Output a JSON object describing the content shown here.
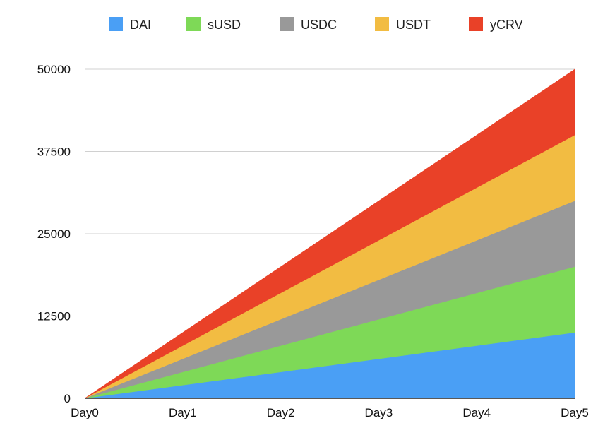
{
  "chart_data": {
    "type": "area",
    "stacked": true,
    "categories": [
      "Day0",
      "Day1",
      "Day2",
      "Day3",
      "Day4",
      "Day5"
    ],
    "series": [
      {
        "name": "DAI",
        "color": "#4a9ff5",
        "values": [
          0,
          2000,
          4000,
          6000,
          8000,
          10000
        ]
      },
      {
        "name": "sUSD",
        "color": "#7ed957",
        "values": [
          0,
          2000,
          4000,
          6000,
          8000,
          10000
        ]
      },
      {
        "name": "USDC",
        "color": "#999999",
        "values": [
          0,
          2000,
          4000,
          6000,
          8000,
          10000
        ]
      },
      {
        "name": "USDT",
        "color": "#f2bc42",
        "values": [
          0,
          2000,
          4000,
          6000,
          8000,
          10000
        ]
      },
      {
        "name": "yCRV",
        "color": "#e94128",
        "values": [
          0,
          2000,
          4000,
          6000,
          8000,
          10000
        ]
      }
    ],
    "ylim": [
      0,
      50000
    ],
    "yticks": [
      "0",
      "12500",
      "25000",
      "37500",
      "50000"
    ],
    "grid": true,
    "legend_position": "top"
  }
}
